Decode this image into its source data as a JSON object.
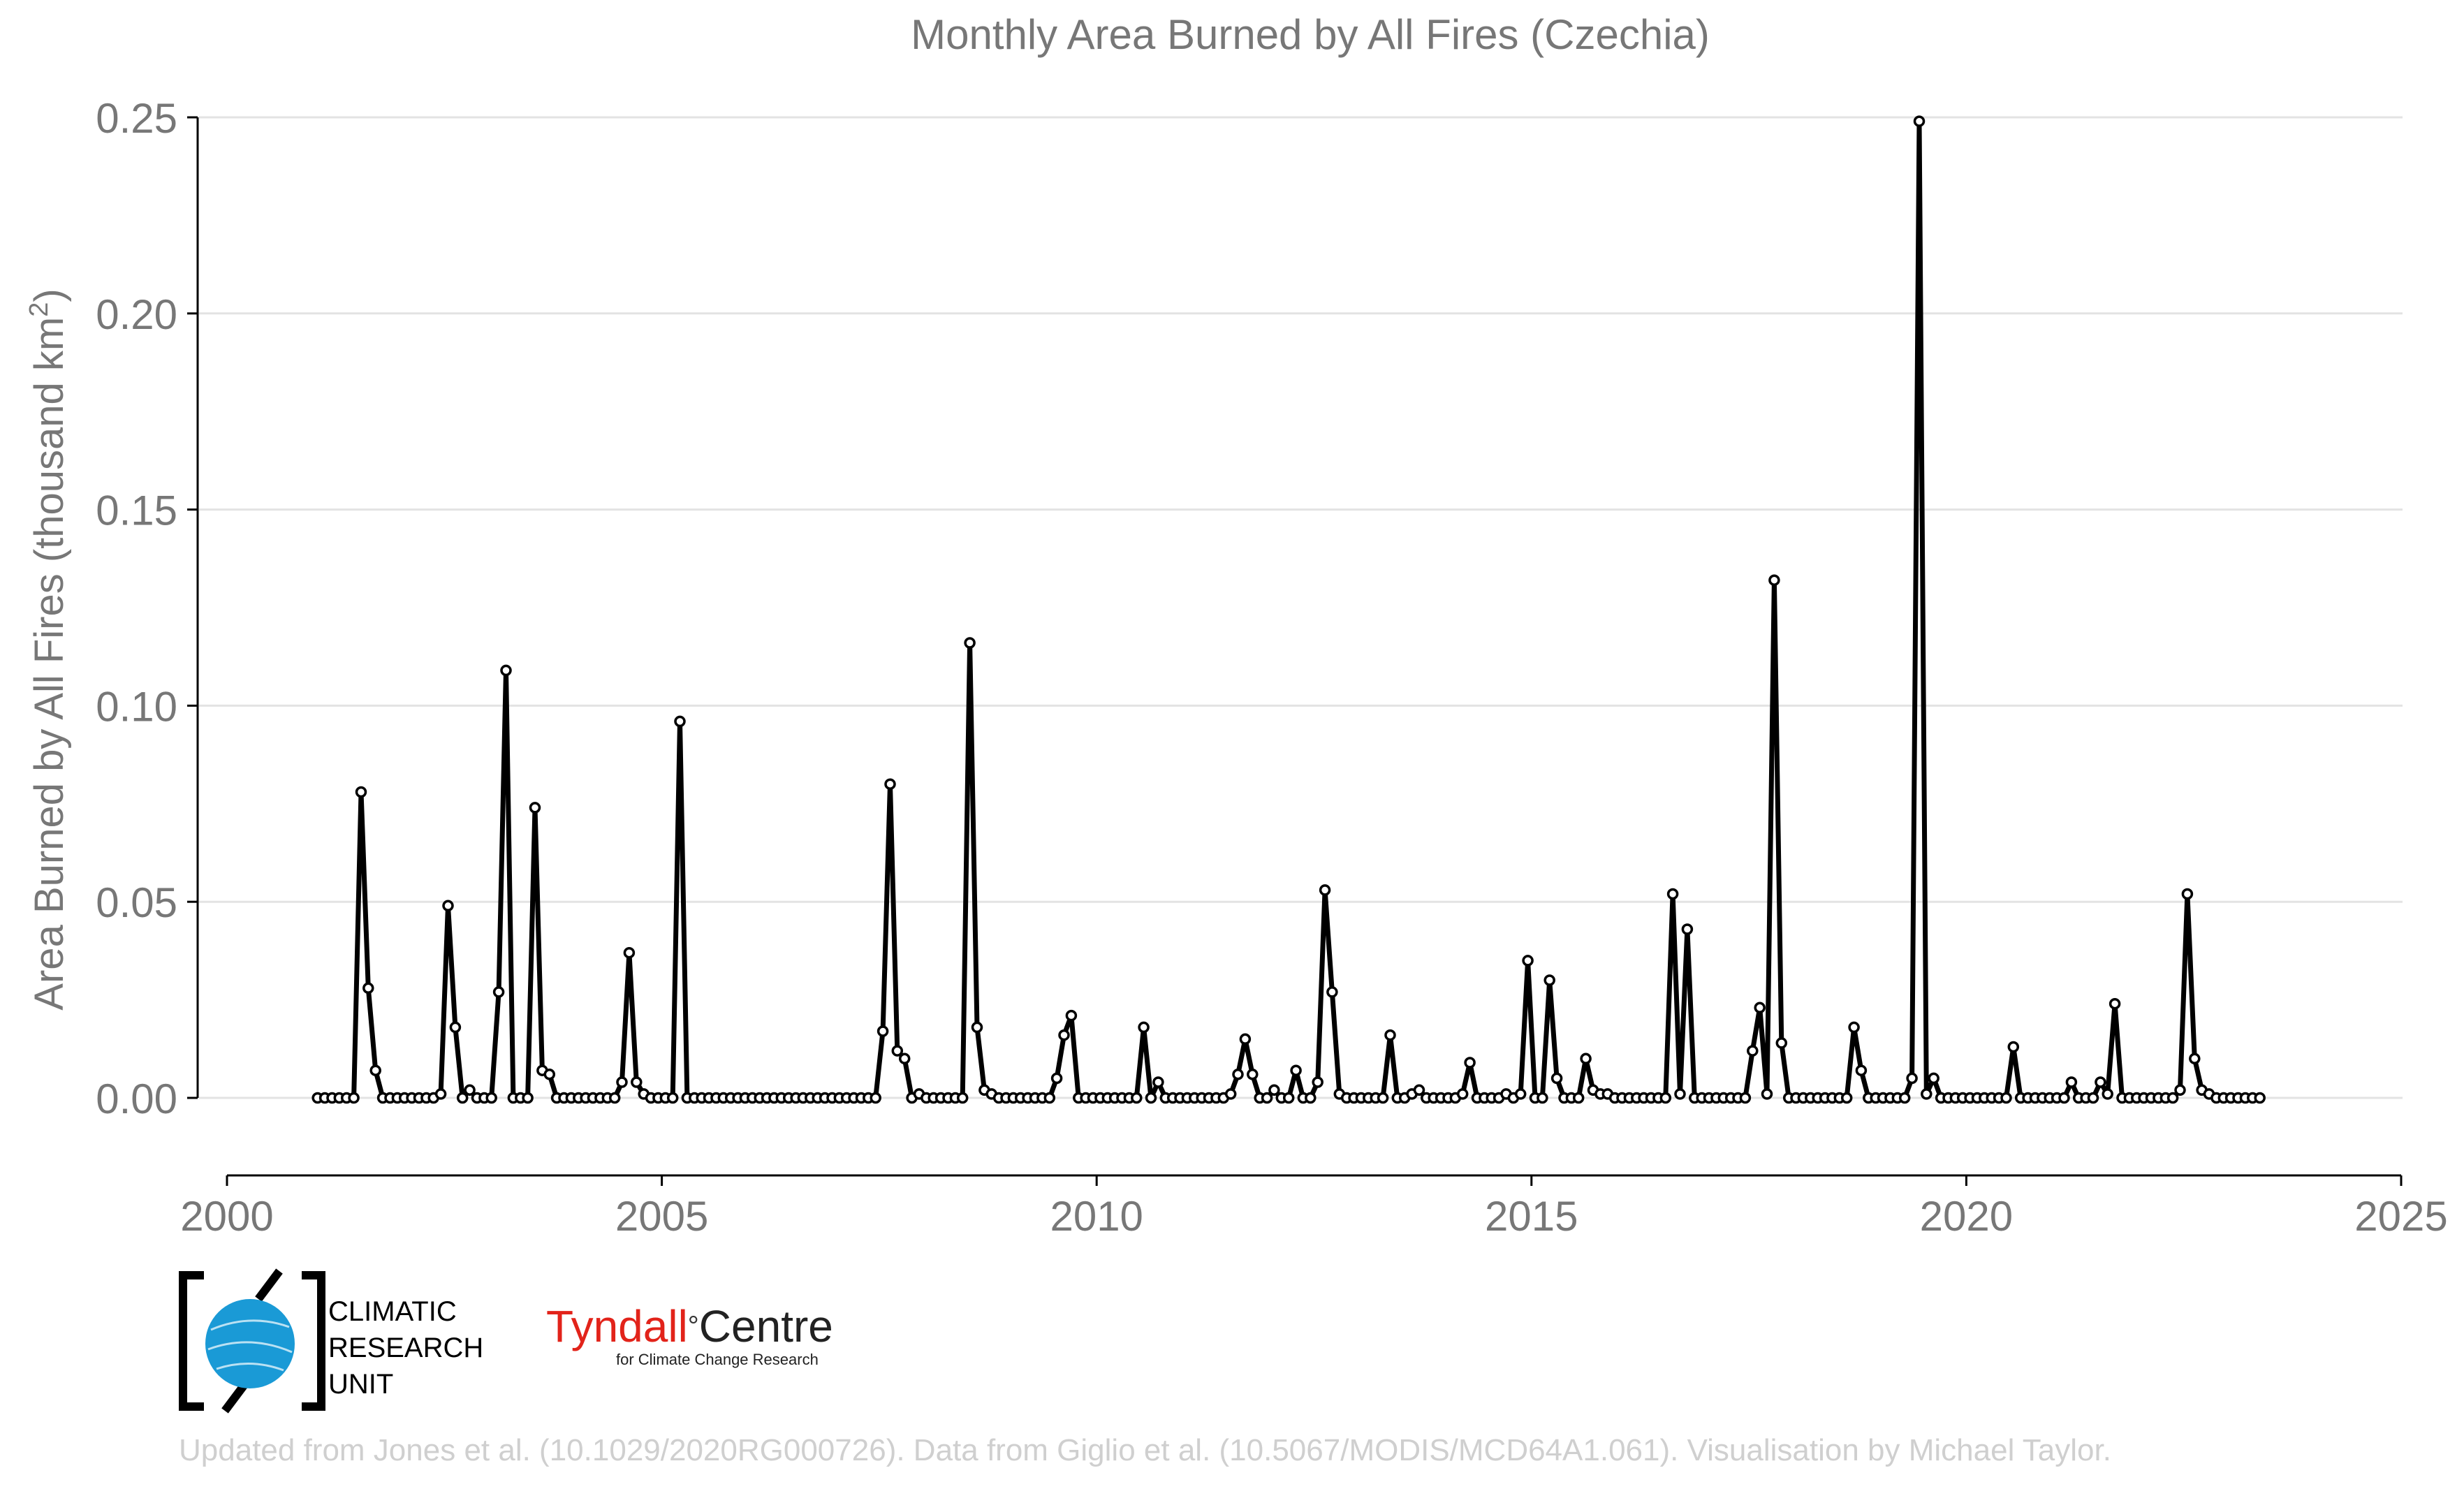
{
  "chart_data": {
    "type": "line",
    "title": "Monthly Area Burned by All Fires (Czechia)",
    "ylabel": "Area Burned by All Fires (thousand km",
    "ylabel_sup": "2",
    "ylabel_suffix": ")",
    "xlim": [
      2000,
      2025
    ],
    "ylim": [
      -0.015,
      0.25
    ],
    "xticks": [
      2000,
      2005,
      2010,
      2015,
      2020,
      2025
    ],
    "yticks": [
      0.0,
      0.05,
      0.1,
      0.15,
      0.2,
      0.25
    ],
    "ytick_labels": [
      "0.00",
      "0.05",
      "0.10",
      "0.15",
      "0.20",
      "0.25"
    ],
    "grid": "horizontal",
    "start_year": 2001,
    "values": [
      0,
      0,
      0,
      0,
      0,
      0,
      0.078,
      0.028,
      0.007,
      0,
      0,
      0,
      0,
      0,
      0,
      0,
      0,
      0.001,
      0.049,
      0.018,
      0,
      0.002,
      0,
      0,
      0,
      0.027,
      0.109,
      0,
      0,
      0,
      0.074,
      0.007,
      0.006,
      0,
      0,
      0,
      0,
      0,
      0,
      0,
      0,
      0,
      0.004,
      0.037,
      0.004,
      0.001,
      0,
      0,
      0,
      0,
      0.096,
      0,
      0,
      0,
      0,
      0,
      0,
      0,
      0,
      0,
      0,
      0,
      0,
      0,
      0,
      0,
      0,
      0,
      0,
      0,
      0,
      0,
      0,
      0,
      0,
      0,
      0,
      0,
      0.017,
      0.08,
      0.012,
      0.01,
      0,
      0.001,
      0,
      0,
      0,
      0,
      0,
      0,
      0.116,
      0.018,
      0.002,
      0.001,
      0,
      0,
      0,
      0,
      0,
      0,
      0,
      0,
      0.005,
      0.016,
      0.021,
      0,
      0,
      0,
      0,
      0,
      0,
      0,
      0,
      0,
      0.018,
      0,
      0.004,
      0,
      0,
      0,
      0,
      0,
      0,
      0,
      0,
      0,
      0.001,
      0.006,
      0.015,
      0.006,
      0,
      0,
      0.002,
      0,
      0,
      0.007,
      0,
      0,
      0.004,
      0.053,
      0.027,
      0.001,
      0,
      0,
      0,
      0,
      0,
      0,
      0.016,
      0,
      0,
      0.001,
      0.002,
      0,
      0,
      0,
      0,
      0,
      0.001,
      0.009,
      0,
      0,
      0,
      0,
      0.001,
      0,
      0.001,
      0.035,
      0,
      0,
      0.03,
      0.005,
      0,
      0,
      0,
      0.01,
      0.002,
      0.001,
      0.001,
      0,
      0,
      0,
      0,
      0,
      0,
      0,
      0,
      0.052,
      0.001,
      0.043,
      0,
      0,
      0,
      0,
      0,
      0,
      0,
      0,
      0.012,
      0.023,
      0.001,
      0.132,
      0.014,
      0,
      0,
      0,
      0,
      0,
      0,
      0,
      0,
      0,
      0.018,
      0.007,
      0,
      0,
      0,
      0,
      0,
      0,
      0.005,
      0.249,
      0.001,
      0.005,
      0,
      0,
      0,
      0,
      0,
      0,
      0,
      0,
      0,
      0,
      0.013,
      0,
      0,
      0,
      0,
      0,
      0,
      0,
      0.004,
      0,
      0,
      0,
      0.004,
      0.001,
      0.024,
      0,
      0,
      0,
      0,
      0,
      0,
      0,
      0,
      0.002,
      0.052,
      0.01,
      0.002,
      0.001,
      0,
      0,
      0,
      0,
      0,
      0,
      0
    ],
    "series_color": "#000000",
    "marker_fill": "#ffffff"
  },
  "logos": {
    "cru": {
      "lines": [
        "CLIMATIC",
        "RESEARCH",
        "UNIT"
      ],
      "globe_color": "#1a9ad6"
    },
    "tyndall": {
      "main_red": "Tyndall",
      "degree": "°",
      "main_black": "Centre",
      "subtitle": "for Climate Change Research",
      "red_color": "#e2231a"
    }
  },
  "credit": "Updated from Jones et al. (10.1029/2020RG000726). Data from Giglio et al. (10.5067/MODIS/MCD64A1.061). Visualisation by Michael Taylor."
}
